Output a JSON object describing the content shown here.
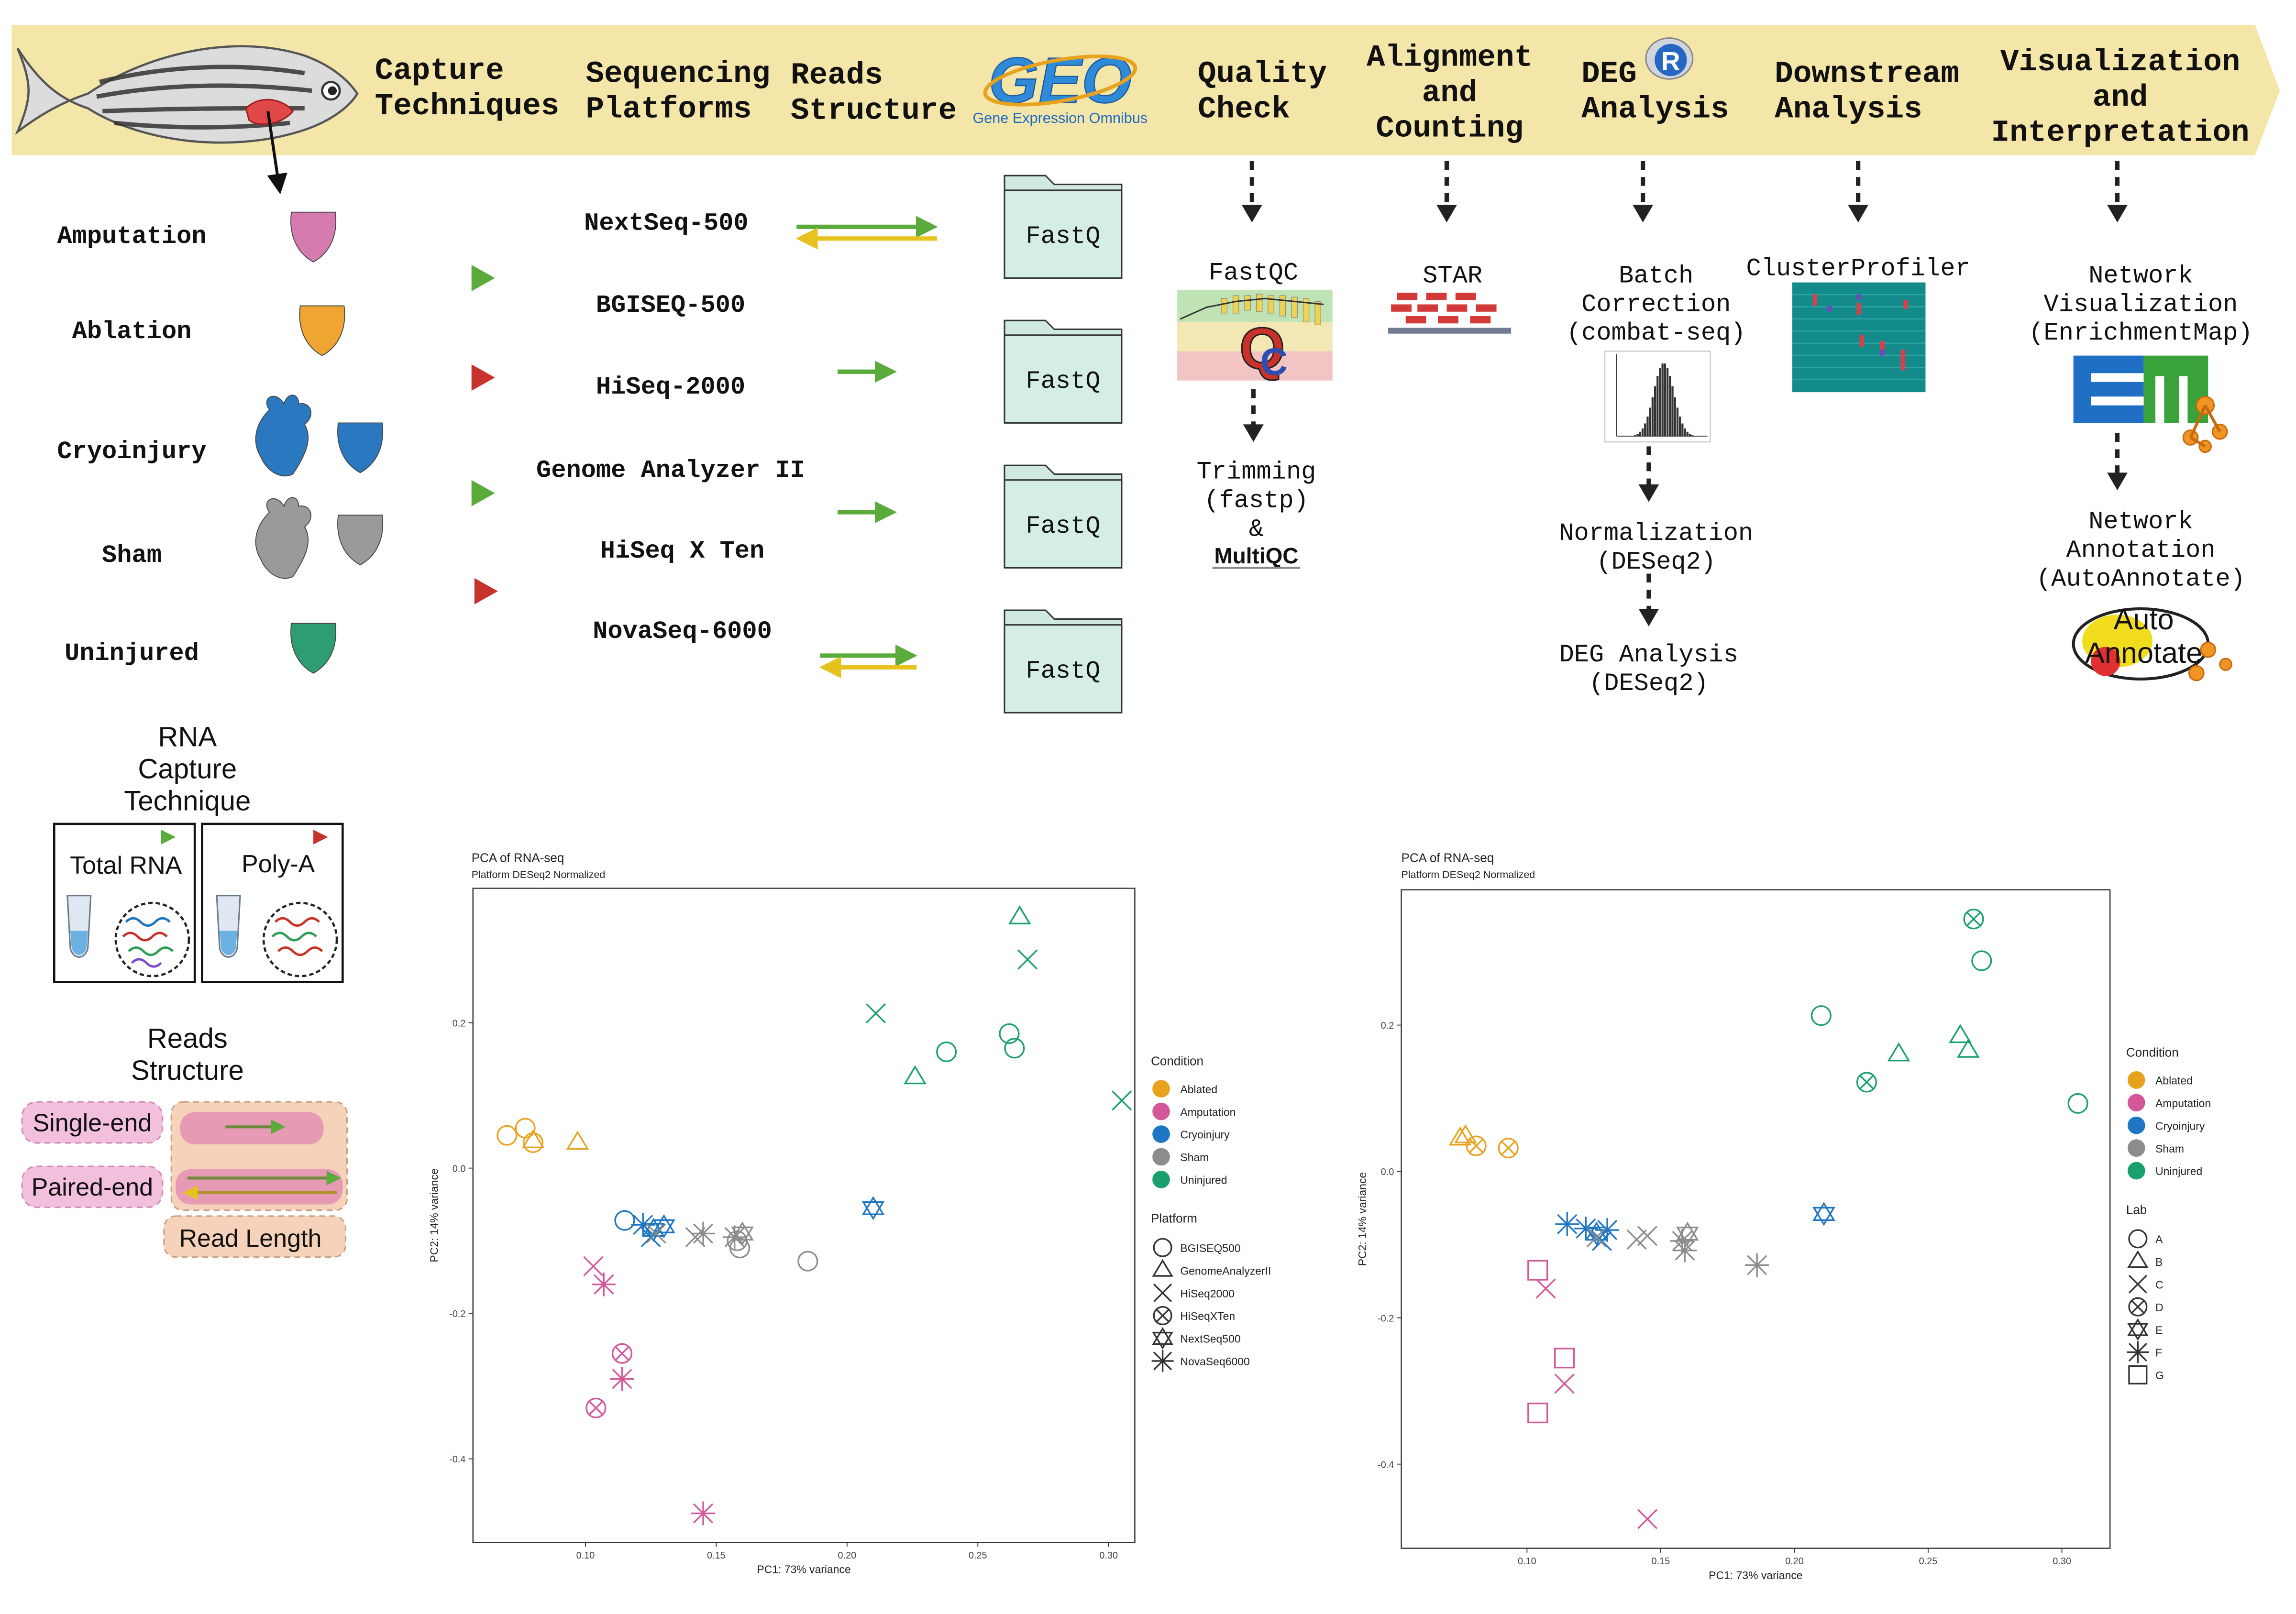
{
  "header": {
    "bg_color": "#f3e6a8",
    "steps": [
      {
        "label": "Capture\nTechniques"
      },
      {
        "label": "Sequencing\nPlatforms"
      },
      {
        "label": "Reads\nStructure"
      },
      {
        "label": "Quality\nCheck"
      },
      {
        "label": "Alignment\nand\nCounting"
      },
      {
        "label": "DEG\nAnalysis"
      },
      {
        "label": "Downstream\nAnalysis"
      },
      {
        "label": "Visualization\nand\nInterpretation"
      }
    ],
    "geo_logo": {
      "mark": "GEO",
      "caption": "Gene Expression Omnibus"
    },
    "r_logo": "R"
  },
  "conditions": [
    {
      "label": "Amputation",
      "color": "#d57bb0"
    },
    {
      "label": "Ablation",
      "color": "#f0a431"
    },
    {
      "label": "Cryoinjury",
      "color": "#2a79c0"
    },
    {
      "label": "Sham",
      "color": "#9a9a9a"
    },
    {
      "label": "Uninjured",
      "color": "#2e9e72"
    }
  ],
  "platforms": [
    "NextSeq-500",
    "BGISEQ-500",
    "HiSeq-2000",
    "Genome Analyzer II",
    "HiSeq X Ten",
    "NovaSeq-6000"
  ],
  "fastq_label": "FastQ",
  "qc": {
    "fastqc": "FastQC",
    "trimming": "Trimming\n(fastp)\n&",
    "multiqc": "MultiQC"
  },
  "alignment": {
    "star": "STAR"
  },
  "deg": {
    "batch": "Batch\nCorrection\n(combat-seq)",
    "normalization": "Normalization\n(DESeq2)",
    "deg_analysis": "DEG Analysis\n(DESeq2)"
  },
  "downstream": {
    "clusterprofiler": "ClusterProfiler"
  },
  "viz": {
    "network_vis": "Network\nVisualization\n(EnrichmentMap)",
    "network_ann": "Network\nAnnotation\n(AutoAnnotate)",
    "autoannotate_logo": "Auto\nAnnotate"
  },
  "legend_capture": {
    "title": "RNA\nCapture\nTechnique",
    "total": "Total RNA",
    "polya": "Poly-A",
    "green": "#5aaa3c",
    "red": "#c8322c"
  },
  "legend_reads": {
    "title": "Reads\nStructure",
    "single": "Single-end",
    "paired": "Paired-end",
    "length": "Read Length"
  },
  "chart_data": [
    {
      "type": "scatter",
      "title": "PCA of RNA-seq",
      "subtitle": "Platform DESeq2 Normalized",
      "xlabel": "PC1: 73% variance",
      "ylabel": "PC2: 14% variance",
      "xlim": [
        0.057,
        0.31
      ],
      "ylim": [
        -0.515,
        0.385
      ],
      "xticks": [
        0.1,
        0.15,
        0.2,
        0.25,
        0.3
      ],
      "xtick_labels": [
        "0.10",
        "0.15",
        "0.20",
        "0.25",
        "0.30"
      ],
      "yticks": [
        0.2,
        0.0,
        -0.2,
        -0.4
      ],
      "ytick_labels": [
        "0.2",
        "0.0",
        "-0.2",
        "-0.4"
      ],
      "color_legend": {
        "title": "Condition",
        "items": [
          "Ablated",
          "Amputation",
          "Cryoinjury",
          "Sham",
          "Uninjured"
        ]
      },
      "shape_legend": {
        "title": "Platform",
        "items": [
          "BGISEQ500",
          "GenomeAnalyzerII",
          "HiSeq2000",
          "HiSeqXTen",
          "NextSeq500",
          "NovaSeq6000"
        ]
      },
      "colors": {
        "Ablated": "#e8a21e",
        "Amputation": "#d4579a",
        "Cryoinjury": "#1f77c4",
        "Sham": "#8c8c8c",
        "Uninjured": "#19a06d"
      },
      "points": [
        {
          "x": 0.07,
          "y": 0.045,
          "c": "Ablated",
          "s": "circle"
        },
        {
          "x": 0.077,
          "y": 0.055,
          "c": "Ablated",
          "s": "circle"
        },
        {
          "x": 0.08,
          "y": 0.035,
          "c": "Ablated",
          "s": "circle"
        },
        {
          "x": 0.08,
          "y": 0.037,
          "c": "Ablated",
          "s": "triangle"
        },
        {
          "x": 0.097,
          "y": 0.035,
          "c": "Ablated",
          "s": "triangle"
        },
        {
          "x": 0.103,
          "y": -0.135,
          "c": "Amputation",
          "s": "x"
        },
        {
          "x": 0.107,
          "y": -0.16,
          "c": "Amputation",
          "s": "asterisk"
        },
        {
          "x": 0.114,
          "y": -0.255,
          "c": "Amputation",
          "s": "circlex"
        },
        {
          "x": 0.114,
          "y": -0.29,
          "c": "Amputation",
          "s": "asterisk"
        },
        {
          "x": 0.104,
          "y": -0.33,
          "c": "Amputation",
          "s": "circlex"
        },
        {
          "x": 0.145,
          "y": -0.475,
          "c": "Amputation",
          "s": "asterisk"
        },
        {
          "x": 0.115,
          "y": -0.072,
          "c": "Cryoinjury",
          "s": "circle"
        },
        {
          "x": 0.122,
          "y": -0.078,
          "c": "Cryoinjury",
          "s": "asterisk"
        },
        {
          "x": 0.126,
          "y": -0.085,
          "c": "Cryoinjury",
          "s": "star"
        },
        {
          "x": 0.13,
          "y": -0.08,
          "c": "Cryoinjury",
          "s": "star"
        },
        {
          "x": 0.125,
          "y": -0.095,
          "c": "Cryoinjury",
          "s": "x"
        },
        {
          "x": 0.21,
          "y": -0.055,
          "c": "Cryoinjury",
          "s": "star"
        },
        {
          "x": 0.127,
          "y": -0.09,
          "c": "Sham",
          "s": "x"
        },
        {
          "x": 0.142,
          "y": -0.095,
          "c": "Sham",
          "s": "x"
        },
        {
          "x": 0.145,
          "y": -0.09,
          "c": "Sham",
          "s": "asterisk"
        },
        {
          "x": 0.157,
          "y": -0.095,
          "c": "Sham",
          "s": "asterisk"
        },
        {
          "x": 0.16,
          "y": -0.09,
          "c": "Sham",
          "s": "star"
        },
        {
          "x": 0.159,
          "y": -0.11,
          "c": "Sham",
          "s": "circle"
        },
        {
          "x": 0.158,
          "y": -0.1,
          "c": "Sham",
          "s": "circle"
        },
        {
          "x": 0.185,
          "y": -0.128,
          "c": "Sham",
          "s": "circle"
        },
        {
          "x": 0.211,
          "y": 0.213,
          "c": "Uninjured",
          "s": "x"
        },
        {
          "x": 0.226,
          "y": 0.125,
          "c": "Uninjured",
          "s": "triangle"
        },
        {
          "x": 0.238,
          "y": 0.16,
          "c": "Uninjured",
          "s": "circle"
        },
        {
          "x": 0.262,
          "y": 0.185,
          "c": "Uninjured",
          "s": "circle"
        },
        {
          "x": 0.264,
          "y": 0.165,
          "c": "Uninjured",
          "s": "circle"
        },
        {
          "x": 0.266,
          "y": 0.345,
          "c": "Uninjured",
          "s": "triangle"
        },
        {
          "x": 0.269,
          "y": 0.287,
          "c": "Uninjured",
          "s": "x"
        },
        {
          "x": 0.305,
          "y": 0.093,
          "c": "Uninjured",
          "s": "x"
        }
      ]
    },
    {
      "type": "scatter",
      "title": "PCA of RNA-seq",
      "subtitle": "Platform DESeq2 Normalized",
      "xlabel": "PC1: 73% variance",
      "ylabel": "PC2: 14% variance",
      "xlim": [
        0.053,
        0.318
      ],
      "ylim": [
        -0.515,
        0.385
      ],
      "xticks": [
        0.1,
        0.15,
        0.2,
        0.25,
        0.3
      ],
      "xtick_labels": [
        "0.10",
        "0.15",
        "0.20",
        "0.25",
        "0.30"
      ],
      "yticks": [
        0.2,
        0.0,
        -0.2,
        -0.4
      ],
      "ytick_labels": [
        "0.2",
        "0.0",
        "-0.2",
        "-0.4"
      ],
      "color_legend": {
        "title": "Condition",
        "items": [
          "Ablated",
          "Amputation",
          "Cryoinjury",
          "Sham",
          "Uninjured"
        ]
      },
      "shape_legend": {
        "title": "Lab",
        "items": [
          "A",
          "B",
          "C",
          "D",
          "E",
          "F",
          "G"
        ]
      },
      "colors": {
        "Ablated": "#e8a21e",
        "Amputation": "#d4579a",
        "Cryoinjury": "#1f77c4",
        "Sham": "#8c8c8c",
        "Uninjured": "#19a06d"
      },
      "points": [
        {
          "x": 0.075,
          "y": 0.045,
          "c": "Ablated",
          "s": "triangle"
        },
        {
          "x": 0.077,
          "y": 0.048,
          "c": "Ablated",
          "s": "triangle"
        },
        {
          "x": 0.081,
          "y": 0.035,
          "c": "Ablated",
          "s": "circlex"
        },
        {
          "x": 0.093,
          "y": 0.032,
          "c": "Ablated",
          "s": "circlex"
        },
        {
          "x": 0.104,
          "y": -0.135,
          "c": "Amputation",
          "s": "square"
        },
        {
          "x": 0.107,
          "y": -0.16,
          "c": "Amputation",
          "s": "x"
        },
        {
          "x": 0.114,
          "y": -0.255,
          "c": "Amputation",
          "s": "square"
        },
        {
          "x": 0.114,
          "y": -0.29,
          "c": "Amputation",
          "s": "x"
        },
        {
          "x": 0.104,
          "y": -0.33,
          "c": "Amputation",
          "s": "square"
        },
        {
          "x": 0.145,
          "y": -0.475,
          "c": "Amputation",
          "s": "x"
        },
        {
          "x": 0.115,
          "y": -0.072,
          "c": "Cryoinjury",
          "s": "asterisk"
        },
        {
          "x": 0.122,
          "y": -0.078,
          "c": "Cryoinjury",
          "s": "asterisk"
        },
        {
          "x": 0.126,
          "y": -0.085,
          "c": "Cryoinjury",
          "s": "star"
        },
        {
          "x": 0.13,
          "y": -0.08,
          "c": "Cryoinjury",
          "s": "asterisk"
        },
        {
          "x": 0.128,
          "y": -0.095,
          "c": "Cryoinjury",
          "s": "x"
        },
        {
          "x": 0.211,
          "y": -0.058,
          "c": "Cryoinjury",
          "s": "star"
        },
        {
          "x": 0.126,
          "y": -0.09,
          "c": "Sham",
          "s": "x"
        },
        {
          "x": 0.141,
          "y": -0.093,
          "c": "Sham",
          "s": "x"
        },
        {
          "x": 0.145,
          "y": -0.088,
          "c": "Sham",
          "s": "x"
        },
        {
          "x": 0.158,
          "y": -0.095,
          "c": "Sham",
          "s": "asterisk"
        },
        {
          "x": 0.16,
          "y": -0.085,
          "c": "Sham",
          "s": "star"
        },
        {
          "x": 0.159,
          "y": -0.108,
          "c": "Sham",
          "s": "asterisk"
        },
        {
          "x": 0.186,
          "y": -0.128,
          "c": "Sham",
          "s": "asterisk"
        },
        {
          "x": 0.21,
          "y": 0.213,
          "c": "Uninjured",
          "s": "circle"
        },
        {
          "x": 0.227,
          "y": 0.122,
          "c": "Uninjured",
          "s": "circlex"
        },
        {
          "x": 0.239,
          "y": 0.16,
          "c": "Uninjured",
          "s": "triangle"
        },
        {
          "x": 0.262,
          "y": 0.185,
          "c": "Uninjured",
          "s": "triangle"
        },
        {
          "x": 0.265,
          "y": 0.165,
          "c": "Uninjured",
          "s": "triangle"
        },
        {
          "x": 0.267,
          "y": 0.345,
          "c": "Uninjured",
          "s": "circlex"
        },
        {
          "x": 0.27,
          "y": 0.288,
          "c": "Uninjured",
          "s": "circle"
        },
        {
          "x": 0.306,
          "y": 0.093,
          "c": "Uninjured",
          "s": "circle"
        }
      ]
    }
  ]
}
